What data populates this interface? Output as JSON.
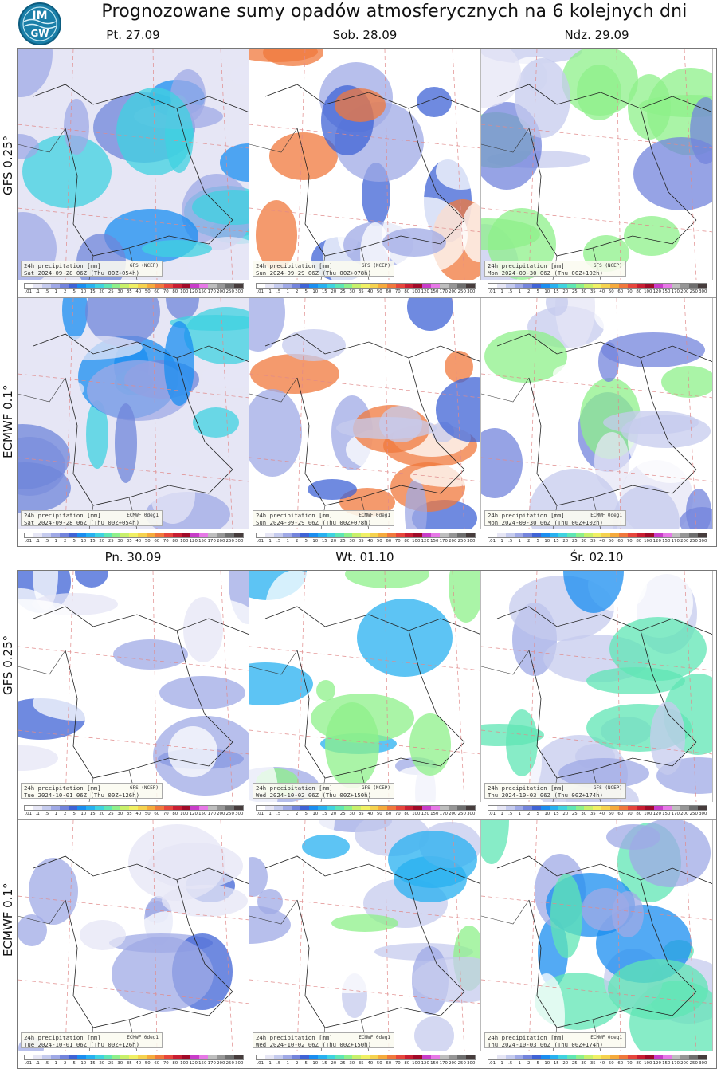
{
  "title": "Prognozowane sumy opadów atmosferycznych na 6 kolejnych dni",
  "logo": {
    "top": "IM",
    "bottom": "GW",
    "icon": "imgw-logo-icon",
    "color": "#1a7fa8"
  },
  "models": {
    "gfs": "GFS 0.25°",
    "ecmwf": "ECMWF 0.1°"
  },
  "days": [
    "Pt. 27.09",
    "Sob. 28.09",
    "Ndz. 29.09",
    "Pn. 30.09",
    "Wt. 01.10",
    "Śr. 02.10"
  ],
  "caption_title": "24h precipitation  [mm]",
  "sources": {
    "gfs": "GFS (NCEP)",
    "ecmwf": "ECMWF 0deg1"
  },
  "valid": [
    "Sat 2024-09-28 06Z (Thu 00Z+054h)",
    "Sun 2024-09-29 06Z (Thu 00Z+078h)",
    "Mon 2024-09-30 06Z (Thu 00Z+102h)",
    "Tue 2024-10-01 06Z (Thu 00Z+126h)",
    "Wed 2024-10-02 06Z (Thu 00Z+150h)",
    "Thu 2024-10-03 06Z (Thu 00Z+174h)"
  ],
  "legend": {
    "ticks": [
      ".01",
      ".1",
      ".5",
      "1",
      "2",
      "5",
      "10",
      "15",
      "20",
      "25",
      "30",
      "35",
      "40",
      "50",
      "60",
      "70",
      "80",
      "100",
      "120",
      "150",
      "170",
      "200",
      "250",
      "300"
    ],
    "colors": [
      "#ffffff",
      "#e6e6f5",
      "#c5cbee",
      "#9fa9e6",
      "#7384dc",
      "#3f63d6",
      "#1a8df0",
      "#27b0f0",
      "#3fd2e0",
      "#5fe6b4",
      "#8ef08a",
      "#c8f06a",
      "#f0f064",
      "#f5d24e",
      "#f5aa3c",
      "#f0783c",
      "#e6463c",
      "#c81e32",
      "#a00a28",
      "#c83cc8",
      "#e678e6",
      "#bebebe",
      "#969696",
      "#6e6e6e",
      "#463c3c"
    ]
  }
}
